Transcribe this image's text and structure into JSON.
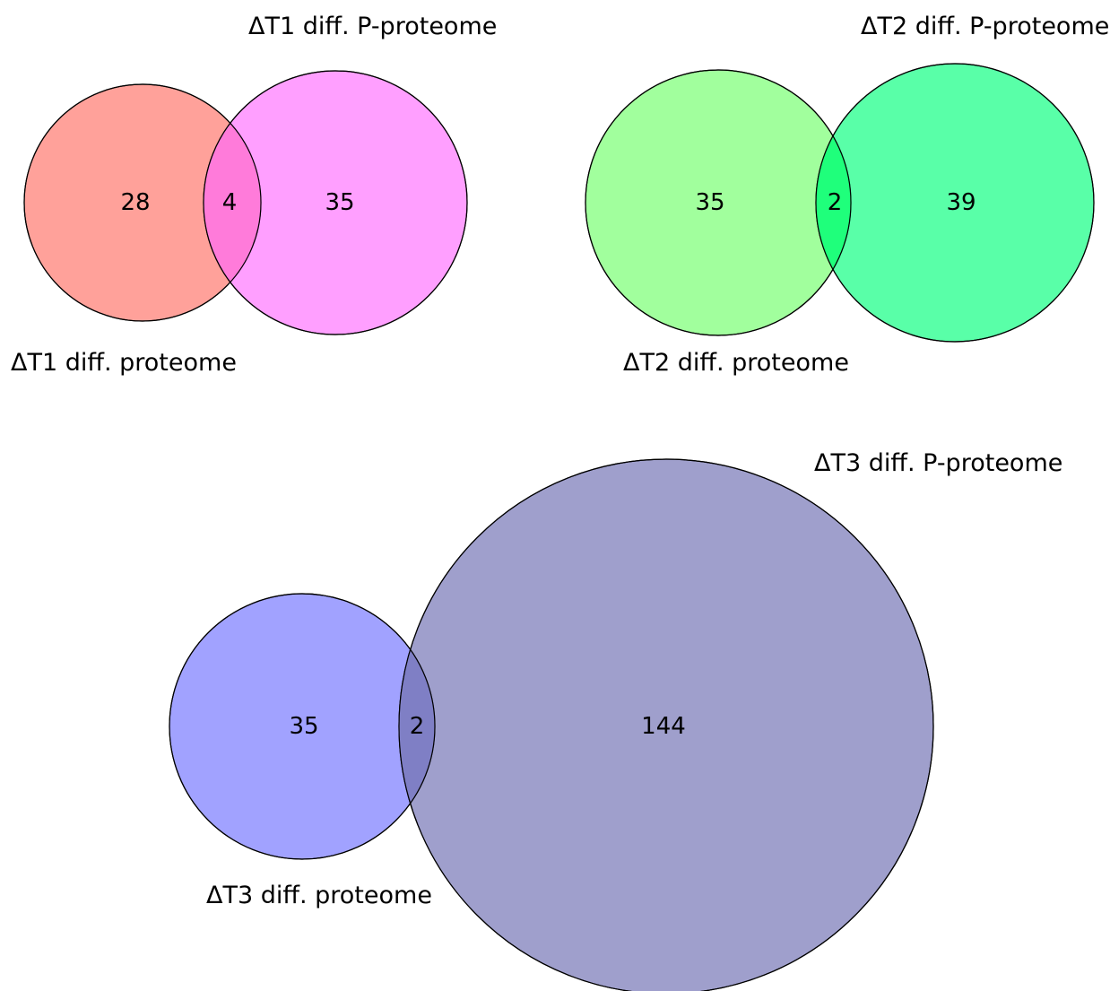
{
  "diagrams": [
    {
      "left_label": "ΔT1 diff. proteome",
      "right_label": "ΔT1 diff. P-proteome",
      "left_only": "28",
      "overlap": "4",
      "right_only": "35",
      "colors": {
        "left": "#ff6e64",
        "right": "#ff6bff",
        "overlap": "#ff7ad9"
      }
    },
    {
      "left_label": "ΔT2 diff. proteome",
      "right_label": "ΔT2 diff. P-proteome",
      "left_only": "35",
      "overlap": "2",
      "right_only": "39",
      "colors": {
        "left": "#6fff68",
        "right": "#00ff7a",
        "overlap": "#1bff79"
      }
    },
    {
      "left_label": "ΔT3 diff. proteome",
      "right_label": "ΔT3 diff. P-proteome",
      "left_only": "35",
      "overlap": "2",
      "right_only": "144",
      "colors": {
        "left": "#6e70ff",
        "right": "#6c6cb0",
        "overlap": "#7f7fc3"
      }
    }
  ]
}
